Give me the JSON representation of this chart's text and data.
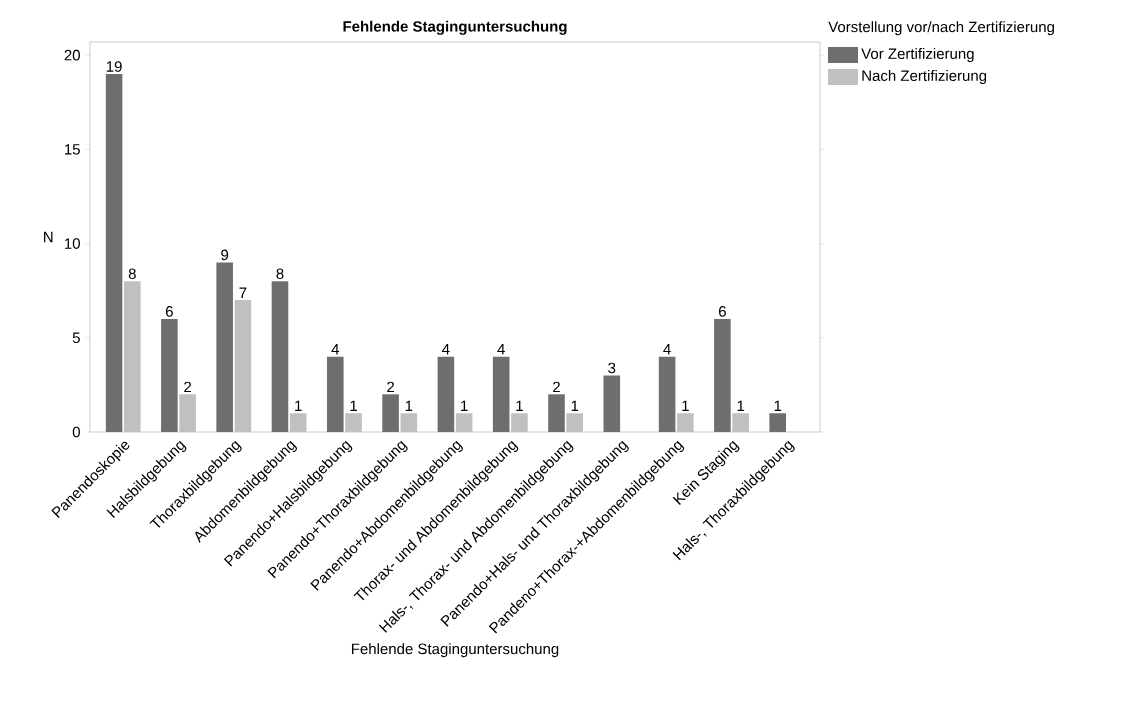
{
  "chart_data": {
    "type": "bar",
    "title": "Fehlende Staginguntersuchung",
    "xlabel": "Fehlende Staginguntersuchung",
    "ylabel": "N",
    "legend_title": "Vorstellung vor/nach Zertifizierung",
    "categories": [
      "Panendoskopie",
      "Halsbildgebung",
      "Thoraxbildgebung",
      "Abdomenbildgebung",
      "Panendo+Halsbildgebung",
      "Panendo+Thoraxbildgebung",
      "Panendo+Abdomenbildgebung",
      "Thorax- und Abdomenbildgebung",
      "Hals-, Thorax- und Abdomenbildgebung",
      "Panendo+Hals- und Thoraxbildgebung",
      "Pandeno+Thorax-+Abdomenbildgebung",
      "Kein Staging",
      "Hals-, Thoraxbildgebung"
    ],
    "series": [
      {
        "name": "Vor Zertifizierung",
        "color": "#6e6e6e",
        "values": [
          19,
          6,
          9,
          8,
          4,
          2,
          4,
          4,
          2,
          3,
          4,
          6,
          1
        ]
      },
      {
        "name": "Nach Zertifizierung",
        "color": "#c0c0c0",
        "values": [
          8,
          2,
          7,
          1,
          1,
          1,
          1,
          1,
          1,
          null,
          1,
          1,
          null
        ]
      }
    ],
    "ylim": [
      0,
      20.7
    ],
    "yticks": [
      0,
      5,
      10,
      15,
      20
    ],
    "data_labels": true,
    "legend": "top right"
  }
}
